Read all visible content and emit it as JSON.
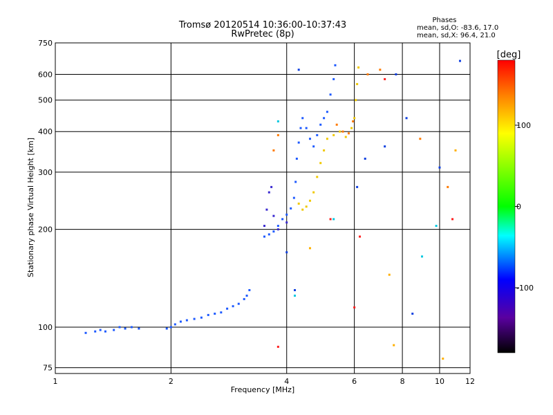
{
  "chart_data": {
    "type": "scatter",
    "title": "Tromsø 20120514 10:36:00-10:37:43",
    "subtitle": "RwPretec (8p)",
    "xlabel": "Frequency [MHz]",
    "ylabel": "Stationary phase Virtual Height [km]",
    "x_scale": "log",
    "y_scale": "log",
    "xlim": [
      1,
      12
    ],
    "ylim": [
      72,
      750
    ],
    "x_ticks": [
      1,
      2,
      4,
      6,
      8,
      10,
      12
    ],
    "y_ticks": [
      75,
      100,
      200,
      300,
      400,
      500,
      600,
      750
    ],
    "grid": true,
    "phases_box": {
      "title": "Phases",
      "line_o": "mean, sd,O: -83.6, 17.0",
      "line_x": "mean, sd,X:  96.4, 21.0"
    },
    "colorbar": {
      "label": "[deg]",
      "range": [
        -180,
        180
      ],
      "ticks": [
        100,
        0,
        -100
      ]
    },
    "series": [
      {
        "phase_deg": -90,
        "color": "#1e5aff",
        "points": [
          [
            1.2,
            96
          ],
          [
            1.27,
            97
          ],
          [
            1.31,
            98
          ],
          [
            1.35,
            97
          ],
          [
            1.42,
            98
          ],
          [
            1.47,
            100
          ],
          [
            1.52,
            99
          ],
          [
            1.58,
            100
          ],
          [
            1.65,
            99
          ],
          [
            1.95,
            99
          ],
          [
            2.0,
            100
          ],
          [
            2.05,
            102
          ],
          [
            2.12,
            104
          ],
          [
            2.2,
            105
          ],
          [
            2.3,
            106
          ],
          [
            2.4,
            107
          ],
          [
            2.5,
            109
          ],
          [
            2.6,
            110
          ],
          [
            2.7,
            111
          ],
          [
            2.8,
            114
          ],
          [
            2.9,
            116
          ],
          [
            3.0,
            118
          ],
          [
            3.1,
            122
          ],
          [
            3.15,
            125
          ],
          [
            3.2,
            130
          ],
          [
            3.5,
            190
          ],
          [
            3.6,
            193
          ],
          [
            3.7,
            197
          ],
          [
            3.8,
            205
          ],
          [
            3.9,
            215
          ],
          [
            4.0,
            222
          ],
          [
            4.1,
            232
          ],
          [
            4.18,
            250
          ],
          [
            4.22,
            280
          ],
          [
            4.25,
            330
          ],
          [
            4.3,
            370
          ],
          [
            4.35,
            410
          ],
          [
            4.4,
            440
          ],
          [
            4.5,
            410
          ],
          [
            4.6,
            380
          ],
          [
            4.7,
            360
          ],
          [
            4.8,
            390
          ],
          [
            4.9,
            420
          ],
          [
            5.0,
            440
          ],
          [
            5.1,
            460
          ],
          [
            5.2,
            520
          ],
          [
            5.3,
            580
          ],
          [
            5.35,
            640
          ]
        ]
      },
      {
        "phase_deg": -125,
        "color": "#3a2ad0",
        "points": [
          [
            3.5,
            205
          ],
          [
            3.55,
            230
          ],
          [
            3.6,
            260
          ],
          [
            3.65,
            270
          ],
          [
            3.7,
            220
          ],
          [
            3.8,
            200
          ],
          [
            4.0,
            210
          ]
        ]
      },
      {
        "phase_deg": 95,
        "color": "#f0c800",
        "points": [
          [
            4.3,
            240
          ],
          [
            4.4,
            230
          ],
          [
            4.5,
            235
          ],
          [
            4.6,
            245
          ],
          [
            4.7,
            260
          ],
          [
            4.8,
            290
          ],
          [
            4.9,
            320
          ],
          [
            5.0,
            350
          ],
          [
            5.1,
            380
          ],
          [
            5.3,
            390
          ],
          [
            5.5,
            400
          ],
          [
            5.7,
            385
          ],
          [
            5.9,
            410
          ],
          [
            6.0,
            440
          ],
          [
            6.05,
            500
          ],
          [
            6.1,
            560
          ],
          [
            6.15,
            630
          ]
        ]
      },
      {
        "phase_deg": 140,
        "color": "#ff7a00",
        "points": [
          [
            5.4,
            420
          ],
          [
            5.6,
            400
          ],
          [
            5.8,
            395
          ],
          [
            5.95,
            430
          ],
          [
            3.7,
            350
          ],
          [
            3.8,
            390
          ],
          [
            6.5,
            600
          ],
          [
            7.0,
            620
          ],
          [
            8.9,
            380
          ],
          [
            10.5,
            270
          ]
        ]
      },
      {
        "phase_deg": -95,
        "color": "#1040e0",
        "points": [
          [
            4.3,
            620
          ],
          [
            6.1,
            270
          ],
          [
            6.4,
            330
          ],
          [
            7.2,
            360
          ],
          [
            7.7,
            600
          ],
          [
            8.2,
            440
          ],
          [
            8.5,
            110
          ],
          [
            10.0,
            310
          ],
          [
            11.3,
            660
          ],
          [
            4.0,
            170
          ],
          [
            4.2,
            130
          ]
        ]
      },
      {
        "phase_deg": -20,
        "color": "#00c8e0",
        "points": [
          [
            3.8,
            430
          ],
          [
            4.2,
            125
          ],
          [
            9.0,
            165
          ],
          [
            9.8,
            205
          ],
          [
            5.3,
            215
          ]
        ]
      },
      {
        "phase_deg": 170,
        "color": "#ff2020",
        "points": [
          [
            3.8,
            87
          ],
          [
            6.0,
            115
          ],
          [
            6.2,
            190
          ],
          [
            7.2,
            580
          ],
          [
            10.8,
            215
          ],
          [
            5.2,
            215
          ]
        ]
      },
      {
        "phase_deg": 110,
        "color": "#ffb000",
        "points": [
          [
            7.6,
            88
          ],
          [
            7.4,
            145
          ],
          [
            10.2,
            80
          ],
          [
            11.0,
            350
          ],
          [
            4.6,
            175
          ]
        ]
      }
    ]
  }
}
